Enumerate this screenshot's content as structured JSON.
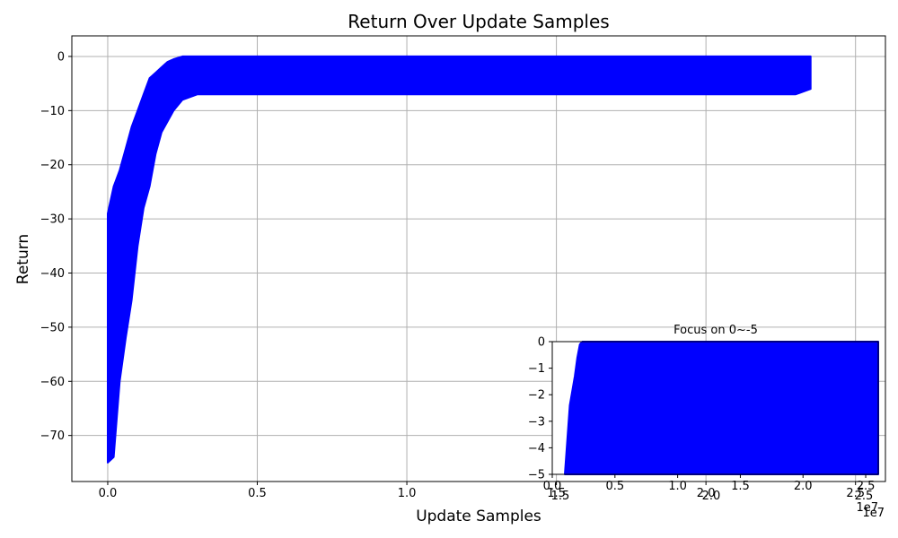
{
  "chart_data": [
    {
      "type": "line",
      "title": "Return Over Update Samples",
      "xlabel": "Update Samples",
      "ylabel": "Return",
      "x_scale_label": "1e7",
      "xlim": [
        -0.12,
        2.6
      ],
      "ylim": [
        -78.5,
        3.8
      ],
      "grid": true,
      "xticks": [
        0.0,
        0.5,
        1.0,
        1.5,
        2.0,
        2.5
      ],
      "xtick_labels": [
        "0.0",
        "0.5",
        "1.0",
        "1.5",
        "2.0",
        "2.5"
      ],
      "yticks": [
        0,
        -10,
        -20,
        -30,
        -40,
        -50,
        -60,
        -70
      ],
      "ytick_labels": [
        "0",
        "−10",
        "−20",
        "−30",
        "−40",
        "−50",
        "−60",
        "−70"
      ],
      "series": [
        {
          "color": "#0000ff",
          "x": [
            0.0,
            0.02,
            0.04,
            0.06,
            0.08,
            0.1,
            0.12,
            0.14,
            0.16,
            0.18,
            0.2,
            0.22,
            0.25,
            0.3,
            0.35,
            0.4,
            0.5,
            0.6,
            0.7,
            0.8,
            0.9,
            1.0,
            1.1,
            1.2,
            1.3,
            1.4,
            1.5,
            1.6,
            1.7,
            1.8,
            1.9,
            2.0,
            2.1,
            2.2,
            2.3,
            2.35
          ],
          "upper": [
            -29,
            -24,
            -21,
            -17,
            -13,
            -10,
            -7,
            -4,
            -3,
            -2,
            -1,
            -0.5,
            0,
            0,
            0,
            0,
            0,
            0,
            0,
            0,
            0,
            0,
            0,
            0,
            0,
            0,
            0,
            0,
            0,
            0,
            0,
            0,
            0,
            0,
            0,
            0
          ],
          "lower": [
            -75,
            -74,
            -60,
            -52,
            -45,
            -35,
            -28,
            -24,
            -18,
            -14,
            -12,
            -10,
            -8,
            -7,
            -7,
            -7,
            -7,
            -7,
            -7,
            -7,
            -7,
            -7,
            -7,
            -7,
            -7,
            -7,
            -7,
            -7,
            -7,
            -7,
            -7,
            -7,
            -7,
            -7,
            -7,
            -6
          ]
        }
      ]
    },
    {
      "type": "line",
      "title": "Focus on 0~-5",
      "x_scale_label": "1e7",
      "xlim": [
        0.0,
        2.6
      ],
      "ylim": [
        -5,
        0
      ],
      "grid": false,
      "xticks": [
        0.0,
        0.5,
        1.0,
        1.5,
        2.0,
        2.5
      ],
      "xtick_labels": [
        "0.0",
        "0.5",
        "1.0",
        "1.5",
        "2.0",
        "2.5"
      ],
      "yticks": [
        0,
        -1,
        -2,
        -3,
        -4,
        -5
      ],
      "ytick_labels": [
        "0",
        "−1",
        "−2",
        "−3",
        "−4",
        "−5"
      ],
      "series": [
        {
          "color": "#0000ff",
          "x": [
            0.1,
            0.14,
            0.18,
            0.2,
            0.22,
            0.24,
            0.26,
            0.3,
            2.6
          ],
          "upper": [
            -5,
            -2.4,
            -1.3,
            -0.6,
            -0.1,
            0,
            0,
            0,
            0
          ],
          "lower": [
            -5,
            -5,
            -5,
            -5,
            -5,
            -5,
            -5,
            -5,
            -5
          ]
        }
      ]
    }
  ],
  "overlap_tick_labels": {
    "xtick_labels": [
      "1.5",
      "2.0",
      "2.5"
    ],
    "x_scale_label": "1e7"
  }
}
